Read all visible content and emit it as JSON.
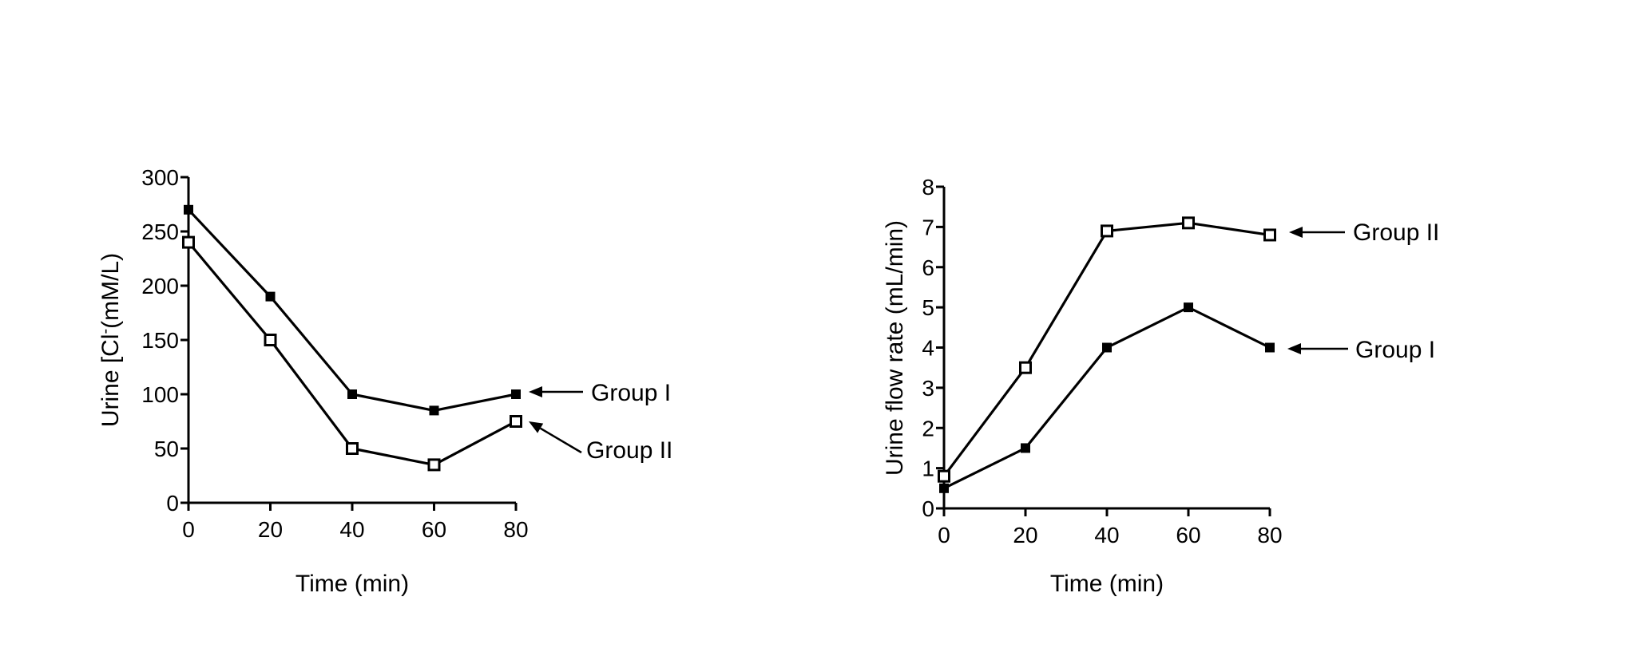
{
  "chart_data": [
    {
      "type": "line",
      "title": "",
      "xlabel": "Time (min)",
      "ylabel": "Urine  [Cl-(mM/L)",
      "ylabel_parts": {
        "prefix": "Urine  [Cl",
        "superscript": "-",
        "suffix": "(mM/L)"
      },
      "x": [
        0,
        20,
        40,
        60,
        80
      ],
      "xlim": [
        0,
        80
      ],
      "ylim": [
        0,
        300
      ],
      "xticks": [
        "0",
        "20",
        "40",
        "60",
        "80"
      ],
      "yticks": [
        "0",
        "50",
        "100",
        "150",
        "200",
        "250",
        "300"
      ],
      "grid": false,
      "series": [
        {
          "name": "Group I",
          "marker": "filled-square",
          "values": [
            270,
            190,
            100,
            85,
            100
          ]
        },
        {
          "name": "Group II",
          "marker": "open-square",
          "values": [
            240,
            150,
            50,
            35,
            75
          ]
        }
      ]
    },
    {
      "type": "line",
      "title": "",
      "xlabel": "Time (min)",
      "ylabel": "Urine flow rate (mL/min)",
      "x": [
        0,
        20,
        40,
        60,
        80
      ],
      "xlim": [
        0,
        80
      ],
      "ylim": [
        0,
        8
      ],
      "xticks": [
        "0",
        "20",
        "40",
        "60",
        "80"
      ],
      "yticks": [
        "0",
        "1",
        "2",
        "3",
        "4",
        "5",
        "6",
        "7",
        "8"
      ],
      "grid": false,
      "series": [
        {
          "name": "Group I",
          "marker": "filled-square",
          "values": [
            0.5,
            1.5,
            4.0,
            5.0,
            4.0
          ]
        },
        {
          "name": "Group II",
          "marker": "open-square",
          "values": [
            0.8,
            3.5,
            6.9,
            7.1,
            6.8
          ]
        }
      ]
    }
  ]
}
